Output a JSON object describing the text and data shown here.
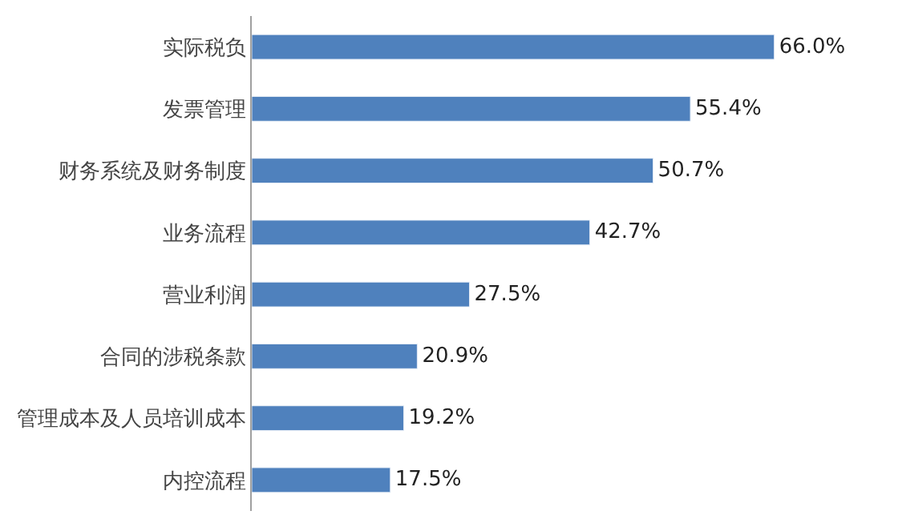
{
  "chart_data": {
    "type": "bar",
    "orientation": "horizontal",
    "categories": [
      "实际税负",
      "发票管理",
      "财务系统及财务制度",
      "业务流程",
      "营业利润",
      "合同的涉税条款",
      "管理成本及人员培训成本",
      "内控流程"
    ],
    "values": [
      66.0,
      55.4,
      50.7,
      42.7,
      27.5,
      20.9,
      19.2,
      17.5
    ],
    "value_labels": [
      "66.0%",
      "55.4%",
      "50.7%",
      "42.7%",
      "27.5%",
      "20.9%",
      "19.2%",
      "17.5%"
    ],
    "color": "#4f81bd",
    "tick_labels": "y"
  }
}
